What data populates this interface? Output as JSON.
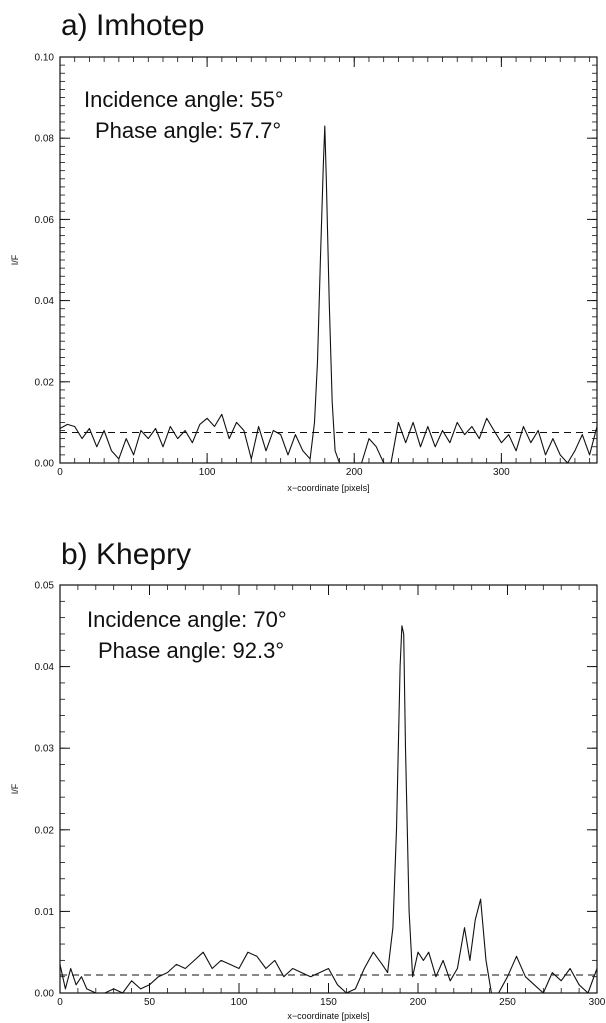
{
  "chart_data": [
    {
      "type": "line",
      "title": "a) Imhotep",
      "xlabel": "x−coordinate [pixels]",
      "ylabel": "I/F",
      "xlim": [
        0,
        365
      ],
      "ylim": [
        0,
        0.1
      ],
      "xticks": [
        0,
        100,
        200,
        300
      ],
      "xtick_labels": [
        "0",
        "100",
        "200",
        "300"
      ],
      "yticks": [
        0,
        0.02,
        0.04,
        0.06,
        0.08,
        0.1
      ],
      "ytick_labels": [
        "0.00",
        "0.02",
        "0.04",
        "0.06",
        "0.08",
        "0.10"
      ],
      "annotations": [
        "Incidence angle: 55°",
        "Phase angle: 57.7°"
      ],
      "reference_line": 0.0075,
      "series": [
        {
          "x": [
            0,
            5,
            10,
            15,
            20,
            25,
            30,
            35,
            40,
            45,
            50,
            55,
            60,
            65,
            70,
            75,
            80,
            85,
            90,
            95,
            100,
            105,
            110,
            115,
            120,
            125,
            130,
            135,
            140,
            145,
            150,
            155,
            160,
            165,
            170,
            173,
            175,
            177,
            179,
            180,
            181,
            183,
            185,
            187,
            190,
            195,
            200,
            205,
            210,
            215,
            220,
            225,
            230,
            235,
            240,
            245,
            250,
            255,
            260,
            265,
            270,
            275,
            280,
            285,
            290,
            295,
            300,
            305,
            310,
            315,
            320,
            325,
            330,
            335,
            340,
            345,
            350,
            355,
            360,
            365
          ],
          "y": [
            0.0085,
            0.0095,
            0.009,
            0.006,
            0.0085,
            0.004,
            0.008,
            0.003,
            0.001,
            0.006,
            0.002,
            0.008,
            0.006,
            0.0085,
            0.004,
            0.009,
            0.006,
            0.008,
            0.005,
            0.0095,
            0.011,
            0.009,
            0.012,
            0.006,
            0.01,
            0.008,
            0.001,
            0.009,
            0.003,
            0.008,
            0.007,
            0.002,
            0.007,
            0.003,
            0.001,
            0.01,
            0.025,
            0.05,
            0.074,
            0.083,
            0.07,
            0.04,
            0.015,
            0.003,
            0.0,
            0.0,
            0.0,
            0.0,
            0.006,
            0.004,
            0.0,
            0.0,
            0.01,
            0.005,
            0.01,
            0.004,
            0.009,
            0.004,
            0.008,
            0.005,
            0.01,
            0.007,
            0.009,
            0.006,
            0.011,
            0.008,
            0.005,
            0.007,
            0.003,
            0.009,
            0.005,
            0.008,
            0.002,
            0.006,
            0.002,
            0.0,
            0.003,
            0.007,
            0.002,
            0.009
          ]
        }
      ]
    },
    {
      "type": "line",
      "title": "b) Khepry",
      "xlabel": "x−coordinate [pixels]",
      "ylabel": "I/F",
      "xlim": [
        0,
        300
      ],
      "ylim": [
        0,
        0.05
      ],
      "xticks": [
        0,
        50,
        100,
        150,
        200,
        250,
        300
      ],
      "xtick_labels": [
        "0",
        "50",
        "100",
        "150",
        "200",
        "250",
        "300"
      ],
      "yticks": [
        0,
        0.01,
        0.02,
        0.03,
        0.04,
        0.05
      ],
      "ytick_labels": [
        "0.00",
        "0.01",
        "0.02",
        "0.03",
        "0.04",
        "0.05"
      ],
      "annotations": [
        "Incidence angle: 70°",
        "Phase angle: 92.3°"
      ],
      "reference_line": 0.0022,
      "series": [
        {
          "x": [
            0,
            3,
            6,
            9,
            12,
            15,
            20,
            25,
            30,
            35,
            40,
            45,
            50,
            55,
            60,
            65,
            70,
            75,
            80,
            85,
            90,
            95,
            100,
            105,
            110,
            115,
            120,
            125,
            130,
            135,
            140,
            145,
            150,
            155,
            160,
            165,
            170,
            175,
            180,
            183,
            186,
            188,
            190,
            191,
            192,
            193,
            195,
            197,
            200,
            203,
            206,
            210,
            214,
            218,
            222,
            226,
            229,
            232,
            235,
            238,
            241,
            245,
            250,
            255,
            260,
            265,
            270,
            275,
            280,
            285,
            290,
            295,
            300
          ],
          "y": [
            0.0035,
            0.0005,
            0.003,
            0.001,
            0.002,
            0.0005,
            0.0,
            0.0,
            0.0005,
            0.0,
            0.0015,
            0.0005,
            0.001,
            0.002,
            0.0025,
            0.0035,
            0.003,
            0.004,
            0.005,
            0.003,
            0.004,
            0.0035,
            0.003,
            0.005,
            0.0045,
            0.003,
            0.004,
            0.002,
            0.003,
            0.0025,
            0.002,
            0.0025,
            0.003,
            0.001,
            0.0,
            0.0005,
            0.003,
            0.005,
            0.0035,
            0.0025,
            0.008,
            0.02,
            0.04,
            0.045,
            0.044,
            0.03,
            0.01,
            0.002,
            0.005,
            0.004,
            0.005,
            0.002,
            0.004,
            0.0015,
            0.003,
            0.008,
            0.004,
            0.009,
            0.0115,
            0.004,
            0.0,
            0.0,
            0.002,
            0.0045,
            0.002,
            0.001,
            0.0,
            0.0025,
            0.0015,
            0.003,
            0.001,
            0.0,
            0.003
          ]
        }
      ]
    }
  ]
}
